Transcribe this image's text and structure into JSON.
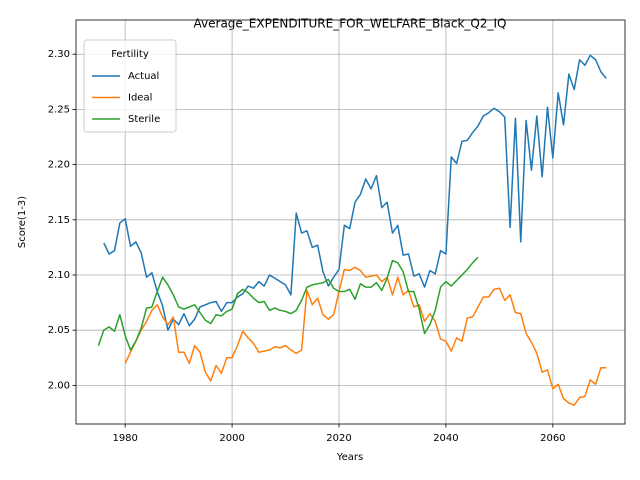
{
  "chart_data": {
    "type": "line",
    "title": "Average_EXPENDITURE_FOR_WELFARE_Black_Q2_IQ",
    "x_label": "Years",
    "y_label": "Score(1-3)",
    "legend_title": "Fertility",
    "legend": "upper left",
    "grid": true,
    "x": [
      1975,
      1976,
      1977,
      1978,
      1979,
      1980,
      1981,
      1982,
      1983,
      1984,
      1985,
      1986,
      1987,
      1988,
      1989,
      1990,
      1991,
      1992,
      1993,
      1994,
      1995,
      1996,
      1997,
      1998,
      1999,
      2000,
      2001,
      2002,
      2003,
      2004,
      2005,
      2006,
      2007,
      2008,
      2009,
      2010,
      2011,
      2012,
      2013,
      2014,
      2015,
      2016,
      2017,
      2018,
      2019,
      2020,
      2021,
      2022,
      2023,
      2024,
      2025,
      2026,
      2027,
      2028,
      2029,
      2030,
      2031,
      2032,
      2033,
      2034,
      2035,
      2036,
      2037,
      2038,
      2039,
      2040,
      2041,
      2042,
      2043,
      2044,
      2045,
      2046,
      2047,
      2048,
      2049,
      2050,
      2051,
      2052,
      2053,
      2054,
      2055,
      2056,
      2057,
      2058,
      2059,
      2060,
      2061,
      2062,
      2063,
      2064,
      2065,
      2066,
      2067,
      2068,
      2069,
      2070
    ],
    "xlim": [
      1970.8,
      2073.5
    ],
    "xticks": [
      1980,
      2000,
      2020,
      2040,
      2060
    ],
    "ylim": [
      1.965,
      2.331
    ],
    "yticks": [
      {
        "value": 2.0,
        "label": "2.00"
      },
      2.05,
      {
        "value": 2.1,
        "label": "2.10"
      },
      2.15,
      {
        "value": 2.2,
        "label": "2.20"
      },
      2.25,
      {
        "value": 2.3,
        "label": "2.30"
      }
    ],
    "series": [
      {
        "name": "Actual",
        "color": "#1f77b4",
        "values": [
          null,
          2.129,
          2.119,
          2.122,
          2.147,
          2.151,
          2.126,
          2.13,
          2.12,
          2.098,
          2.102,
          2.085,
          2.072,
          2.05,
          2.06,
          2.055,
          2.065,
          2.054,
          2.06,
          2.071,
          2.073,
          2.075,
          2.076,
          2.067,
          2.075,
          2.075,
          2.08,
          2.083,
          2.09,
          2.088,
          2.094,
          2.09,
          2.1,
          2.097,
          2.094,
          2.091,
          2.082,
          2.156,
          2.138,
          2.14,
          2.125,
          2.127,
          2.103,
          2.09,
          2.098,
          2.105,
          2.145,
          2.142,
          2.166,
          2.173,
          2.187,
          2.178,
          2.19,
          2.161,
          2.166,
          2.138,
          2.145,
          2.118,
          2.119,
          2.099,
          2.101,
          2.089,
          2.104,
          2.101,
          2.122,
          2.119,
          2.207,
          2.201,
          2.221,
          2.222,
          2.229,
          2.235,
          2.244,
          2.247,
          2.251,
          2.248,
          2.243,
          2.143,
          2.242,
          2.13,
          2.24,
          2.195,
          2.244,
          2.189,
          2.252,
          2.206,
          2.265,
          2.236,
          2.282,
          2.268,
          2.295,
          2.29,
          2.299,
          2.295,
          2.284,
          2.278
        ]
      },
      {
        "name": "Ideal",
        "color": "#ff7f0e",
        "values": [
          null,
          null,
          null,
          null,
          null,
          2.02,
          2.03,
          2.04,
          2.05,
          2.058,
          2.068,
          2.073,
          2.062,
          2.055,
          2.062,
          2.03,
          2.03,
          2.02,
          2.036,
          2.03,
          2.012,
          2.004,
          2.018,
          2.011,
          2.025,
          2.025,
          2.036,
          2.049,
          2.043,
          2.038,
          2.03,
          2.031,
          2.032,
          2.035,
          2.034,
          2.036,
          2.032,
          2.029,
          2.032,
          2.086,
          2.073,
          2.079,
          2.064,
          2.06,
          2.064,
          2.085,
          2.105,
          2.104,
          2.107,
          2.104,
          2.098,
          2.099,
          2.1,
          2.094,
          2.098,
          2.082,
          2.098,
          2.082,
          2.086,
          2.071,
          2.073,
          2.058,
          2.065,
          2.058,
          2.042,
          2.04,
          2.031,
          2.043,
          2.04,
          2.061,
          2.062,
          2.071,
          2.08,
          2.08,
          2.087,
          2.088,
          2.077,
          2.082,
          2.066,
          2.065,
          2.047,
          2.039,
          2.029,
          2.012,
          2.014,
          1.997,
          2.001,
          1.988,
          1.984,
          1.982,
          1.989,
          1.99,
          2.005,
          2.001,
          2.016,
          2.016
        ]
      },
      {
        "name": "Sterile",
        "color": "#2ca02c",
        "values": [
          2.036,
          2.05,
          2.053,
          2.049,
          2.064,
          2.045,
          2.032,
          2.04,
          2.052,
          2.07,
          2.071,
          2.085,
          2.098,
          2.091,
          2.082,
          2.071,
          2.069,
          2.071,
          2.073,
          2.066,
          2.059,
          2.056,
          2.064,
          2.063,
          2.067,
          2.069,
          2.083,
          2.087,
          2.084,
          2.079,
          2.075,
          2.076,
          2.068,
          2.07,
          2.068,
          2.067,
          2.065,
          2.068,
          2.077,
          2.089,
          2.091,
          2.092,
          2.093,
          2.096,
          2.088,
          2.085,
          2.085,
          2.087,
          2.078,
          2.092,
          2.089,
          2.089,
          2.093,
          2.086,
          2.097,
          2.113,
          2.111,
          2.103,
          2.085,
          2.085,
          2.069,
          2.047,
          2.055,
          2.068,
          2.089,
          2.094,
          2.09,
          2.095,
          2.1,
          2.105,
          2.111,
          2.116,
          null,
          null,
          null,
          null,
          null,
          null,
          null,
          null,
          null,
          null,
          null,
          null,
          null,
          null,
          null,
          null,
          null,
          null,
          null,
          null,
          null,
          null,
          null,
          null
        ]
      }
    ]
  }
}
